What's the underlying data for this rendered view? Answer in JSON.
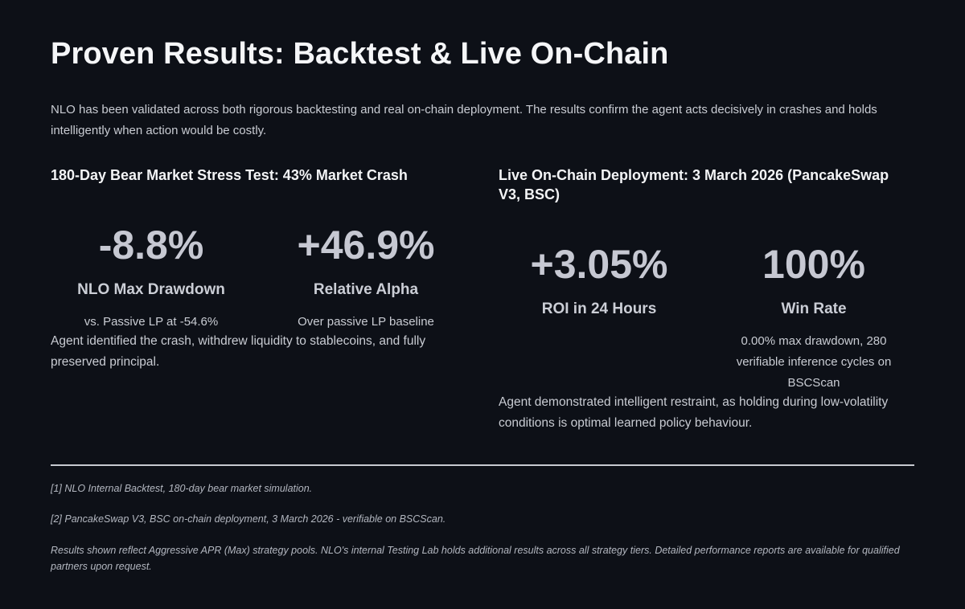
{
  "title": "Proven Results: Backtest & Live On-Chain",
  "intro": "NLO has been validated across both rigorous backtesting and real on-chain deployment. The results confirm the agent acts decisively in crashes and holds intelligently when action would be costly.",
  "left": {
    "heading": "180-Day Bear Market Stress Test: 43% Market Crash",
    "metrics": [
      {
        "value": "-8.8%",
        "label": "NLO Max Drawdown",
        "sub": "vs. Passive LP at -54.6%"
      },
      {
        "value": "+46.9%",
        "label": "Relative Alpha",
        "sub": "Over passive LP baseline"
      }
    ],
    "text": "Agent identified the crash, withdrew liquidity to stablecoins, and fully preserved principal."
  },
  "right": {
    "heading": "Live On-Chain Deployment: 3 March 2026 (PancakeSwap V3, BSC)",
    "metrics": [
      {
        "value": "+3.05%",
        "label": "ROI in 24 Hours",
        "sub": ""
      },
      {
        "value": "100%",
        "label": "Win Rate",
        "sub": "0.00% max drawdown, 280 verifiable inference cycles on BSCScan"
      }
    ],
    "text": "Agent demonstrated intelligent restraint, as holding during low-volatility conditions is optimal learned policy behaviour."
  },
  "footnotes": [
    "[1] NLO Internal Backtest, 180-day bear market simulation.",
    "[2] PancakeSwap V3, BSC on-chain deployment, 3 March 2026 - verifiable on BSCScan.",
    "Results shown reflect Aggressive APR (Max) strategy pools. NLO's internal Testing Lab holds additional results across all strategy tiers. Detailed performance reports are available for qualified partners upon request."
  ]
}
